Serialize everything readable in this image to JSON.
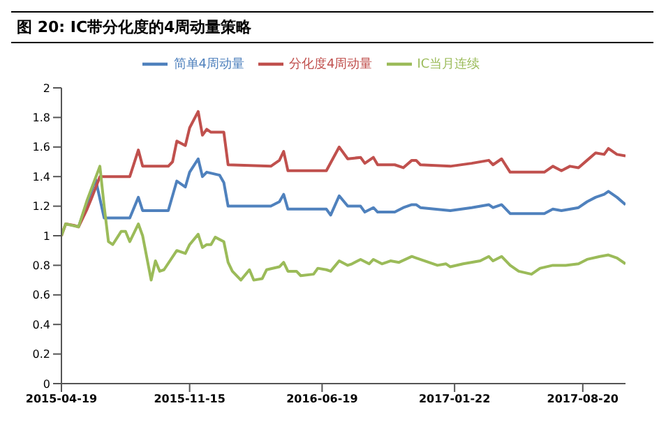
{
  "chart_data": {
    "type": "line",
    "title": "图 20: IC带分化度的4周动量策略",
    "xlim": [
      "2015-04-19",
      "2017-10-29"
    ],
    "xticks": [
      "2015-04-19",
      "2015-11-15",
      "2016-06-19",
      "2017-01-22",
      "2017-08-20"
    ],
    "ylim": [
      0,
      2
    ],
    "yticks": [
      0,
      0.2,
      0.4,
      0.6,
      0.8,
      1,
      1.2,
      1.4,
      1.6,
      1.8,
      2
    ],
    "grid": false,
    "legend": "top",
    "marker": "none",
    "line_style": "solid",
    "series": [
      {
        "name": "简单4周动量",
        "color": "#4f81bd",
        "x": [
          "2015-05-17",
          "2015-05-31",
          "2015-06-14",
          "2015-06-28",
          "2015-08-09",
          "2015-08-23",
          "2015-08-30",
          "2015-10-11",
          "2015-10-25",
          "2015-11-08",
          "2015-11-15",
          "2015-11-29",
          "2015-12-06",
          "2015-12-13",
          "2016-01-03",
          "2016-01-10",
          "2016-01-17",
          "2016-03-27",
          "2016-04-10",
          "2016-04-17",
          "2016-04-24",
          "2016-06-26",
          "2016-07-03",
          "2016-07-17",
          "2016-07-31",
          "2016-08-21",
          "2016-08-28",
          "2016-09-11",
          "2016-09-18",
          "2016-10-16",
          "2016-10-30",
          "2016-11-13",
          "2016-11-20",
          "2016-11-27",
          "2017-01-15",
          "2017-02-19",
          "2017-03-19",
          "2017-03-26",
          "2017-04-09",
          "2017-04-23",
          "2017-06-18",
          "2017-07-02",
          "2017-07-16",
          "2017-08-13",
          "2017-08-27",
          "2017-09-10",
          "2017-09-24",
          "2017-10-01",
          "2017-10-15",
          "2017-10-29"
        ],
        "values": [
          1.06,
          1.22,
          1.38,
          1.12,
          1.12,
          1.26,
          1.17,
          1.17,
          1.37,
          1.33,
          1.43,
          1.52,
          1.4,
          1.43,
          1.41,
          1.36,
          1.2,
          1.2,
          1.23,
          1.28,
          1.18,
          1.18,
          1.14,
          1.27,
          1.2,
          1.2,
          1.16,
          1.19,
          1.16,
          1.16,
          1.19,
          1.21,
          1.21,
          1.19,
          1.17,
          1.19,
          1.21,
          1.19,
          1.21,
          1.15,
          1.15,
          1.18,
          1.17,
          1.19,
          1.23,
          1.26,
          1.28,
          1.3,
          1.26,
          1.21
        ]
      },
      {
        "name": "分化度4周动量",
        "color": "#c0504d",
        "x": [
          "2015-04-19",
          "2015-04-26",
          "2015-05-10",
          "2015-05-17",
          "2015-05-31",
          "2015-06-07",
          "2015-06-21",
          "2015-08-09",
          "2015-08-23",
          "2015-08-30",
          "2015-10-11",
          "2015-10-18",
          "2015-10-25",
          "2015-11-08",
          "2015-11-15",
          "2015-11-29",
          "2015-12-06",
          "2015-12-13",
          "2015-12-20",
          "2016-01-10",
          "2016-01-17",
          "2016-03-27",
          "2016-04-10",
          "2016-04-17",
          "2016-04-24",
          "2016-06-26",
          "2016-07-17",
          "2016-07-31",
          "2016-08-21",
          "2016-08-28",
          "2016-09-11",
          "2016-09-18",
          "2016-10-16",
          "2016-10-30",
          "2016-11-13",
          "2016-11-20",
          "2016-11-27",
          "2017-01-15",
          "2017-02-19",
          "2017-03-19",
          "2017-03-26",
          "2017-04-09",
          "2017-04-23",
          "2017-06-18",
          "2017-07-02",
          "2017-07-16",
          "2017-07-30",
          "2017-08-13",
          "2017-08-27",
          "2017-09-10",
          "2017-09-24",
          "2017-10-01",
          "2017-10-15",
          "2017-10-29"
        ],
        "values": [
          1.0,
          1.08,
          1.07,
          1.06,
          1.18,
          1.25,
          1.4,
          1.4,
          1.58,
          1.47,
          1.47,
          1.5,
          1.64,
          1.61,
          1.73,
          1.84,
          1.68,
          1.72,
          1.7,
          1.7,
          1.48,
          1.47,
          1.51,
          1.57,
          1.44,
          1.44,
          1.6,
          1.52,
          1.53,
          1.49,
          1.53,
          1.48,
          1.48,
          1.46,
          1.51,
          1.51,
          1.48,
          1.47,
          1.49,
          1.51,
          1.48,
          1.52,
          1.43,
          1.43,
          1.47,
          1.44,
          1.47,
          1.46,
          1.51,
          1.56,
          1.55,
          1.59,
          1.55,
          1.54
        ]
      },
      {
        "name": "IC当月连续",
        "color": "#9bbb59",
        "x": [
          "2015-04-19",
          "2015-04-26",
          "2015-05-17",
          "2015-05-31",
          "2015-06-21",
          "2015-06-28",
          "2015-07-05",
          "2015-07-12",
          "2015-07-26",
          "2015-08-02",
          "2015-08-09",
          "2015-08-23",
          "2015-08-30",
          "2015-09-13",
          "2015-09-20",
          "2015-09-27",
          "2015-10-04",
          "2015-10-25",
          "2015-11-08",
          "2015-11-15",
          "2015-11-29",
          "2015-12-06",
          "2015-12-13",
          "2015-12-20",
          "2015-12-27",
          "2016-01-10",
          "2016-01-17",
          "2016-01-24",
          "2016-02-07",
          "2016-02-21",
          "2016-02-28",
          "2016-03-13",
          "2016-03-20",
          "2016-04-10",
          "2016-04-17",
          "2016-04-24",
          "2016-05-08",
          "2016-05-15",
          "2016-06-05",
          "2016-06-12",
          "2016-06-26",
          "2016-07-03",
          "2016-07-17",
          "2016-07-31",
          "2016-08-07",
          "2016-08-21",
          "2016-09-04",
          "2016-09-11",
          "2016-09-25",
          "2016-10-09",
          "2016-10-23",
          "2016-11-13",
          "2016-11-20",
          "2016-12-25",
          "2017-01-08",
          "2017-01-15",
          "2017-02-05",
          "2017-03-05",
          "2017-03-19",
          "2017-03-26",
          "2017-04-09",
          "2017-04-23",
          "2017-05-07",
          "2017-05-28",
          "2017-06-11",
          "2017-07-02",
          "2017-07-23",
          "2017-08-13",
          "2017-08-27",
          "2017-09-17",
          "2017-10-01",
          "2017-10-15",
          "2017-10-29"
        ],
        "values": [
          1.0,
          1.08,
          1.06,
          1.24,
          1.47,
          1.2,
          0.96,
          0.94,
          1.03,
          1.03,
          0.96,
          1.08,
          1.0,
          0.7,
          0.83,
          0.76,
          0.77,
          0.9,
          0.88,
          0.94,
          1.01,
          0.92,
          0.94,
          0.94,
          0.99,
          0.96,
          0.82,
          0.76,
          0.7,
          0.77,
          0.7,
          0.71,
          0.77,
          0.79,
          0.82,
          0.76,
          0.76,
          0.73,
          0.74,
          0.78,
          0.77,
          0.76,
          0.83,
          0.8,
          0.81,
          0.84,
          0.81,
          0.84,
          0.81,
          0.83,
          0.82,
          0.86,
          0.85,
          0.8,
          0.81,
          0.79,
          0.81,
          0.83,
          0.86,
          0.83,
          0.86,
          0.8,
          0.76,
          0.74,
          0.78,
          0.8,
          0.8,
          0.81,
          0.84,
          0.86,
          0.87,
          0.85,
          0.81
        ]
      }
    ]
  }
}
